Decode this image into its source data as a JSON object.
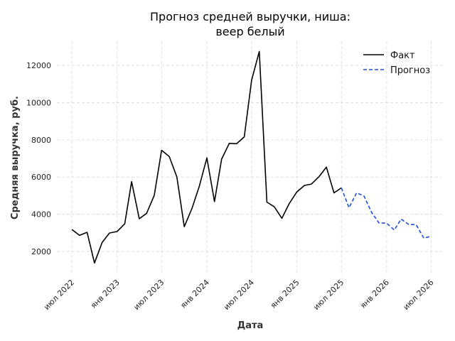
{
  "chart_data": {
    "type": "line",
    "title": [
      "Прогноз средней выручки, ниша:",
      "веер белый"
    ],
    "xlabel": "Дата",
    "ylabel": "Средняя выручка, руб.",
    "xlim": [
      "2022-05-01",
      "2026-08-15"
    ],
    "ylim": [
      700,
      13300
    ],
    "y_ticks": [
      2000,
      4000,
      6000,
      8000,
      10000,
      12000
    ],
    "x_ticks": [
      {
        "date": "2022-07-01",
        "label": "июл 2022"
      },
      {
        "date": "2023-01-01",
        "label": "янв 2023"
      },
      {
        "date": "2023-07-01",
        "label": "июл 2023"
      },
      {
        "date": "2024-01-01",
        "label": "янв 2024"
      },
      {
        "date": "2024-07-01",
        "label": "июл 2024"
      },
      {
        "date": "2025-01-01",
        "label": "янв 2025"
      },
      {
        "date": "2025-07-01",
        "label": "июл 2025"
      },
      {
        "date": "2026-01-01",
        "label": "янв 2026"
      },
      {
        "date": "2026-07-01",
        "label": "июл 2026"
      }
    ],
    "grid": true,
    "legend": "top-right",
    "series": [
      {
        "name": "Факт",
        "color": "#000000",
        "style": "solid",
        "x": [
          "2022-07-01",
          "2022-08-01",
          "2022-09-01",
          "2022-10-01",
          "2022-11-01",
          "2022-12-01",
          "2023-01-01",
          "2023-02-01",
          "2023-03-01",
          "2023-04-01",
          "2023-05-01",
          "2023-06-01",
          "2023-07-01",
          "2023-08-01",
          "2023-09-01",
          "2023-10-01",
          "2023-11-01",
          "2023-12-01",
          "2024-01-01",
          "2024-02-01",
          "2024-03-01",
          "2024-04-01",
          "2024-05-01",
          "2024-06-01",
          "2024-07-01",
          "2024-08-01",
          "2024-09-01",
          "2024-10-01",
          "2024-11-01",
          "2024-12-01",
          "2025-01-01",
          "2025-02-01",
          "2025-03-01",
          "2025-04-01",
          "2025-05-01",
          "2025-06-01",
          "2025-07-01"
        ],
        "values": [
          3180,
          2870,
          3030,
          1380,
          2480,
          2990,
          3070,
          3490,
          5750,
          3760,
          4050,
          5020,
          7440,
          7100,
          6000,
          3330,
          4300,
          5500,
          7030,
          4680,
          6960,
          7810,
          7790,
          8160,
          11200,
          12750,
          4650,
          4400,
          3780,
          4580,
          5200,
          5550,
          5620,
          6020,
          6530,
          5150,
          5420
        ]
      },
      {
        "name": "Прогноз",
        "color": "#1f4fd6",
        "style": "dashed",
        "x": [
          "2025-07-01",
          "2025-08-01",
          "2025-09-01",
          "2025-10-01",
          "2025-11-01",
          "2025-12-01",
          "2026-01-01",
          "2026-02-01",
          "2026-03-01",
          "2026-04-01",
          "2026-05-01",
          "2026-06-01",
          "2026-07-01"
        ],
        "values": [
          5420,
          4350,
          5150,
          4980,
          4100,
          3530,
          3520,
          3150,
          3740,
          3450,
          3440,
          2720,
          2810
        ]
      }
    ]
  }
}
